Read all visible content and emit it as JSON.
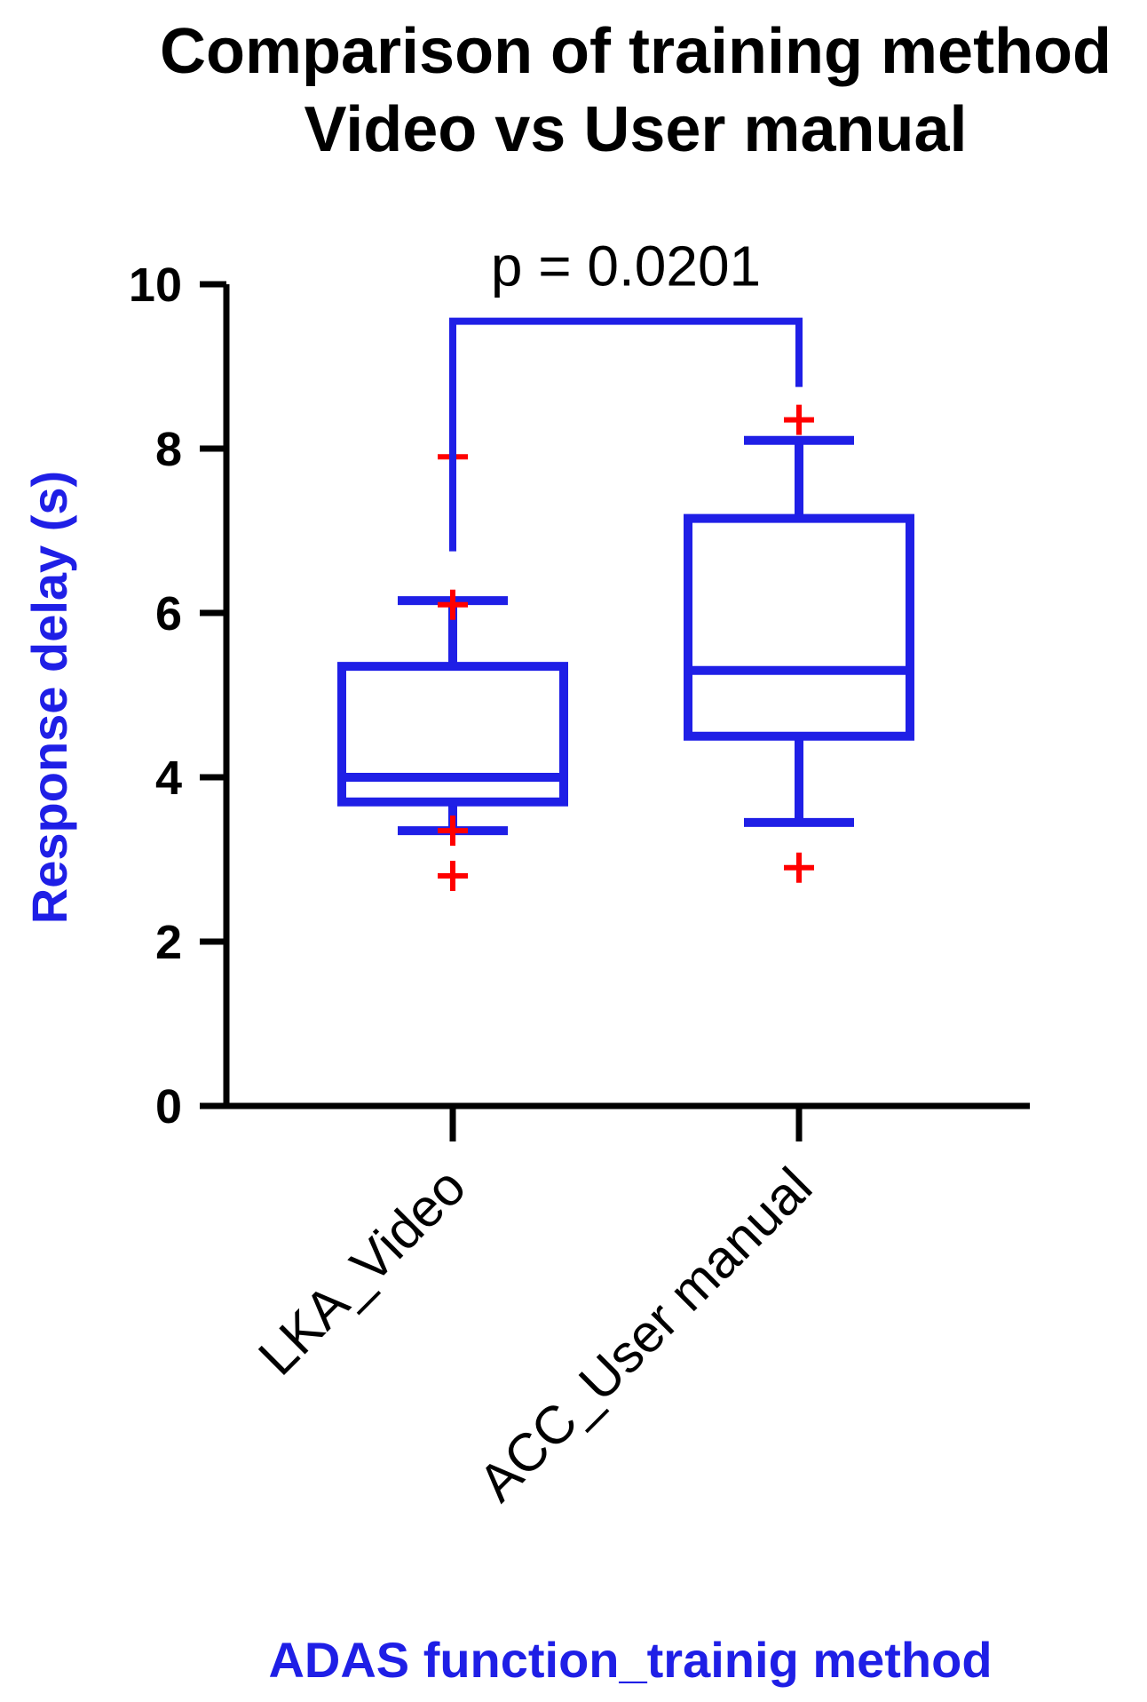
{
  "chart_data": {
    "type": "box",
    "title_lines": [
      "Comparison of training method",
      "Video vs User manual"
    ],
    "xlabel": "ADAS function_trainig method",
    "ylabel": "Response delay (s)",
    "ylim": [
      0,
      10
    ],
    "yticks": [
      "0",
      "2",
      "4",
      "6",
      "8",
      "10"
    ],
    "categories": [
      "LKA_Video",
      "ACC_User manual"
    ],
    "boxes": [
      {
        "category": "LKA_Video",
        "whisker_low": 3.35,
        "q1": 3.7,
        "median": 4.0,
        "q3": 5.35,
        "whisker_high": 6.15,
        "outliers": [
          2.8,
          3.35,
          6.1,
          7.9
        ]
      },
      {
        "category": "ACC_User manual",
        "whisker_low": 3.45,
        "q1": 4.5,
        "median": 5.3,
        "q3": 7.15,
        "whisker_high": 8.1,
        "outliers": [
          2.9,
          8.35
        ]
      }
    ],
    "significance": {
      "label": "p = 0.0201",
      "bracket_y": 9.55
    },
    "colors": {
      "box": "#1f1fe6",
      "outlier": "#ff0000",
      "axis": "#000000",
      "axis_title": "#1f1fe6"
    },
    "grid": false
  }
}
